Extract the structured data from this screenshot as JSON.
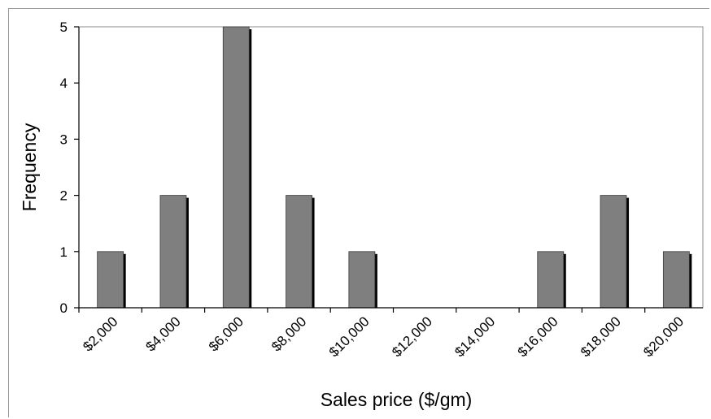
{
  "chart_data": {
    "type": "bar",
    "categories": [
      "$2,000",
      "$4,000",
      "$6,000",
      "$8,000",
      "$10,000",
      "$12,000",
      "$14,000",
      "$16,000",
      "$18,000",
      "$20,000"
    ],
    "values": [
      1,
      2,
      5,
      2,
      1,
      0,
      0,
      1,
      2,
      1
    ],
    "xlabel": "Sales price ($/gm)",
    "ylabel": "Frequency",
    "yticks": [
      "0",
      "1",
      "2",
      "3",
      "4",
      "5"
    ],
    "ylim": [
      0,
      5
    ],
    "grid": false,
    "legend": "none",
    "bar_color": "#7f7f7f",
    "bar_shadow_color": "#000000"
  }
}
